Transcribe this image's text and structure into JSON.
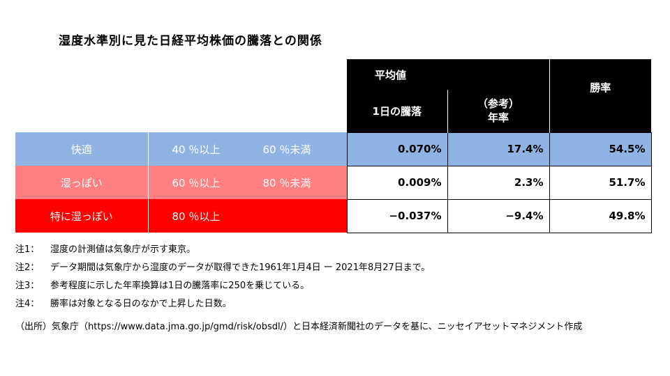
{
  "title": "湿度水準別に見た日経平均株価の騰落との関係",
  "table": {
    "header": {
      "avg_label": "平均値",
      "col_daily": "1日の騰落",
      "col_annual_line1": "（参考）",
      "col_annual_line2": "年率",
      "col_win": "勝率"
    },
    "rows": [
      {
        "category": "快適",
        "range_a": "40 ％以上",
        "range_b": "60 ％未満",
        "daily": "0.070%",
        "annual": "17.4%",
        "win": "54.5%"
      },
      {
        "category": "湿っぽい",
        "range_a": "60 ％以上",
        "range_b": "80 ％未満",
        "daily": "0.009%",
        "annual": "2.3%",
        "win": "51.7%"
      },
      {
        "category": "特に湿っぽい",
        "range_a": "80 ％以上",
        "range_b": "",
        "daily": "−0.037%",
        "annual": "−9.4%",
        "win": "49.8%"
      }
    ]
  },
  "notes": [
    {
      "key": "注1：",
      "text": "湿度の計測値は気象庁が示す東京。"
    },
    {
      "key": "注2：",
      "text": "データ期間は気象庁から湿度のデータが取得できた1961年1月4日 ー 2021年8月27日まで。"
    },
    {
      "key": "注3：",
      "text": "参考程度に示した年率換算は1日の騰落率に250を乗じている。"
    },
    {
      "key": "注4：",
      "text": "勝率は対象となる日のなかで上昇した日数。"
    }
  ],
  "source": "（出所）気象庁（https://www.data.jma.go.jp/gmd/risk/obsdl/）と日本経済新聞社のデータを基に、ニッセイアセットマネジメント作成"
}
